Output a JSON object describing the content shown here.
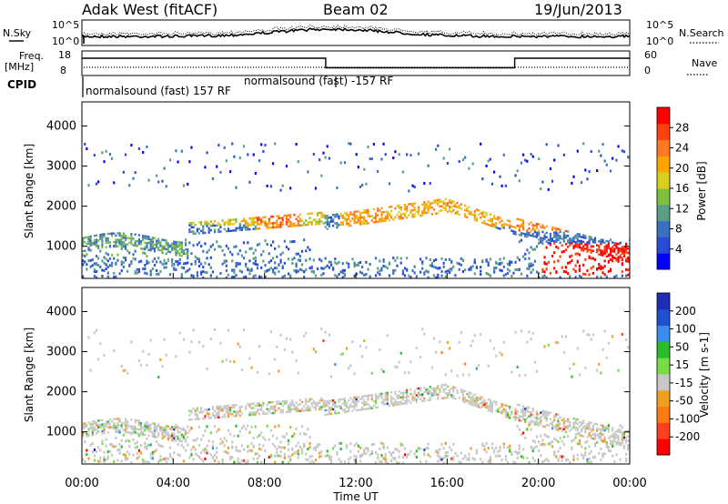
{
  "header": {
    "station": "Adak West (fitACF)",
    "beam": "Beam 02",
    "date": "19/Jun/2013"
  },
  "noise_panel": {
    "left_label": "N.Sky",
    "right_label": "N.Search",
    "left_ticks": [
      "10^5",
      "10^0"
    ],
    "right_ticks": [
      "10^5",
      "10^0"
    ]
  },
  "freq_panel": {
    "left_label_1": "Freq.",
    "left_label_2": "[MHz]",
    "right_label": "Nave",
    "left_ticks": [
      "18",
      "8"
    ],
    "right_ticks": [
      "60",
      "0"
    ],
    "freq_level_fraction": 0.72,
    "nave_levels": [
      {
        "start": 0.0,
        "end": 0.445,
        "value_fraction": 0.72
      },
      {
        "start": 0.445,
        "end": 0.79,
        "value_fraction": 0.3
      },
      {
        "start": 0.79,
        "end": 1.0,
        "value_fraction": 0.72
      }
    ]
  },
  "cpid_panel": {
    "label": "CPID",
    "programs": [
      {
        "text": "normalsound (fast) 157 RF"
      },
      {
        "text": "normalsound (fast) -157 RF"
      }
    ]
  },
  "chart_data": [
    {
      "type": "heatmap",
      "quantity": "power",
      "xlabel": "",
      "ylabel": "Slant Range [km]",
      "ylim": [
        200,
        4600
      ],
      "yticks": [
        "1000",
        "2000",
        "3000",
        "4000"
      ],
      "colorbar": {
        "label": "Power [dB]",
        "ticks": [
          "4",
          "8",
          "12",
          "16",
          "20",
          "24",
          "28"
        ],
        "colors": [
          "#0000ff",
          "#2a4bd7",
          "#3b6fc1",
          "#5a9e8a",
          "#7fbf3f",
          "#d8d020",
          "#ffa500",
          "#ff7a1f",
          "#ff4010",
          "#ff0000"
        ]
      },
      "features": [
        {
          "t0": 0.0,
          "t1": 4.6,
          "range_start": 700,
          "range_end": 1300,
          "power": 10
        },
        {
          "t0": 4.6,
          "t1": 10.6,
          "range_start": 1550,
          "range_end": 2000,
          "power": 18
        },
        {
          "t0": 7.6,
          "t1": 9.5,
          "range_start": 1450,
          "range_end": 1850,
          "power": 24
        },
        {
          "t0": 11.3,
          "t1": 18.9,
          "range_start": 1500,
          "range_end": 2300,
          "power": 20
        },
        {
          "t0": 18.9,
          "t1": 21.5,
          "range_start": 1400,
          "range_end": 1900,
          "power": 24
        },
        {
          "t0": 20.0,
          "t1": 24.0,
          "range_start": 300,
          "range_end": 1100,
          "power": 28
        }
      ]
    },
    {
      "type": "heatmap",
      "quantity": "velocity",
      "xlabel": "Time UT",
      "ylabel": "Slant Range [km]",
      "ylim": [
        200,
        4600
      ],
      "yticks": [
        "1000",
        "2000",
        "3000",
        "4000"
      ],
      "xlim": [
        0,
        24
      ],
      "xticks": [
        "00:00",
        "04:00",
        "08:00",
        "12:00",
        "16:00",
        "20:00",
        "00:00"
      ],
      "colorbar": {
        "label": "Velocity [m s-1]",
        "ticks": [
          "200",
          "100",
          "50",
          "15",
          "-15",
          "-50",
          "-100",
          "-200"
        ],
        "colors": [
          "#1e2db4",
          "#1e50d2",
          "#3c8cf0",
          "#28be28",
          "#78dc46",
          "#c8c8c8",
          "#f0a020",
          "#ff7a10",
          "#ff4020",
          "#ff0000"
        ]
      }
    }
  ]
}
